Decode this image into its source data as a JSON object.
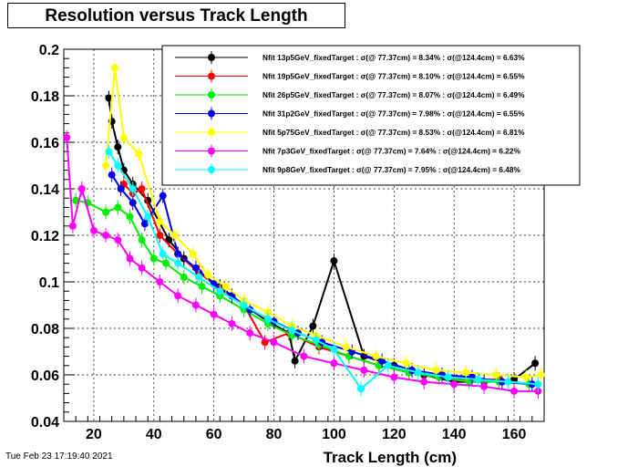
{
  "chart_data": {
    "type": "scatter",
    "title": "Resolution versus Track Length",
    "xlabel": "Track Length (cm)",
    "ylabel": "",
    "xlim": [
      10,
      170
    ],
    "ylim": [
      0.04,
      0.2
    ],
    "x_ticks": [
      20,
      40,
      60,
      80,
      100,
      120,
      140,
      160
    ],
    "x_tick_labels": [
      "20",
      "40",
      "60",
      "80",
      "100",
      "120",
      "140",
      "160"
    ],
    "y_ticks": [
      0.04,
      0.06,
      0.08,
      0.1,
      0.12,
      0.14,
      0.16,
      0.18,
      0.2
    ],
    "y_tick_labels": [
      "0.04",
      "0.06",
      "0.08",
      "0.1",
      "0.12",
      "0.14",
      "0.16",
      "0.18",
      "0.2"
    ],
    "grid": true,
    "legend_position": "top-right",
    "series": [
      {
        "name": "Nfit 13p5GeV_fixedTarget : σ(@ 77.37cm) = 8.34% : σ(@124.4cm) = 6.63%",
        "color": "#000000",
        "points": [
          [
            25,
            0.179
          ],
          [
            26,
            0.169
          ],
          [
            28,
            0.158
          ],
          [
            30,
            0.148
          ],
          [
            33,
            0.142
          ],
          [
            38,
            0.135
          ],
          [
            45,
            0.118
          ],
          [
            50,
            0.11
          ],
          [
            55,
            0.104
          ],
          [
            62,
            0.098
          ],
          [
            70,
            0.09
          ],
          [
            78,
            0.083
          ],
          [
            85,
            0.078
          ],
          [
            87,
            0.066
          ],
          [
            93,
            0.081
          ],
          [
            100,
            0.109
          ],
          [
            110,
            0.068
          ],
          [
            120,
            0.064
          ],
          [
            130,
            0.06
          ],
          [
            140,
            0.057
          ],
          [
            150,
            0.057
          ],
          [
            160,
            0.058
          ],
          [
            167,
            0.065
          ]
        ]
      },
      {
        "name": "Nfit 19p5GeV_fixedTarget : σ(@ 77.37cm) = 8.10% : σ(@124.4cm) = 6.55%",
        "color": "#ff0000",
        "points": [
          [
            30,
            0.142
          ],
          [
            33,
            0.138
          ],
          [
            36,
            0.14
          ],
          [
            42,
            0.12
          ],
          [
            48,
            0.112
          ],
          [
            55,
            0.104
          ],
          [
            62,
            0.097
          ],
          [
            70,
            0.09
          ],
          [
            77,
            0.074
          ],
          [
            85,
            0.078
          ],
          [
            95,
            0.072
          ],
          [
            105,
            0.068
          ],
          [
            115,
            0.064
          ],
          [
            125,
            0.061
          ],
          [
            135,
            0.059
          ],
          [
            145,
            0.058
          ],
          [
            155,
            0.058
          ],
          [
            165,
            0.056
          ]
        ]
      },
      {
        "name": "Nfit 26p5GeV_fixedTarget : σ(@ 77.37cm) = 8.07% : σ(@124.4cm) = 6.49%",
        "color": "#00ee00",
        "points": [
          [
            14,
            0.135
          ],
          [
            18,
            0.134
          ],
          [
            24,
            0.13
          ],
          [
            28,
            0.132
          ],
          [
            32,
            0.128
          ],
          [
            36,
            0.118
          ],
          [
            40,
            0.11
          ],
          [
            44,
            0.108
          ],
          [
            50,
            0.102
          ],
          [
            56,
            0.098
          ],
          [
            62,
            0.094
          ],
          [
            70,
            0.088
          ],
          [
            78,
            0.082
          ],
          [
            86,
            0.077
          ],
          [
            95,
            0.073
          ],
          [
            105,
            0.068
          ],
          [
            115,
            0.064
          ],
          [
            125,
            0.061
          ],
          [
            135,
            0.059
          ],
          [
            145,
            0.057
          ],
          [
            155,
            0.057
          ],
          [
            165,
            0.056
          ]
        ]
      },
      {
        "name": "Nfit 31p2GeV_fixedTarget : σ(@ 77.37cm) = 7.98% : σ(@124.4cm) = 6.55%",
        "color": "#0000ee",
        "points": [
          [
            26,
            0.146
          ],
          [
            29,
            0.14
          ],
          [
            33,
            0.134
          ],
          [
            37,
            0.125
          ],
          [
            43,
            0.137
          ],
          [
            48,
            0.112
          ],
          [
            54,
            0.106
          ],
          [
            60,
            0.099
          ],
          [
            66,
            0.094
          ],
          [
            72,
            0.088
          ],
          [
            80,
            0.083
          ],
          [
            88,
            0.078
          ],
          [
            96,
            0.074
          ],
          [
            106,
            0.07
          ],
          [
            116,
            0.066
          ],
          [
            126,
            0.062
          ],
          [
            136,
            0.06
          ],
          [
            146,
            0.059
          ],
          [
            156,
            0.057
          ],
          [
            166,
            0.056
          ]
        ]
      },
      {
        "name": "Nfit 5p75GeV_fixedTarget : σ(@ 77.37cm) = 8.53% : σ(@124.4cm) = 6.81%",
        "color": "#ffff00",
        "points": [
          [
            24,
            0.15
          ],
          [
            27,
            0.192
          ],
          [
            30,
            0.162
          ],
          [
            35,
            0.155
          ],
          [
            42,
            0.126
          ],
          [
            47,
            0.12
          ],
          [
            53,
            0.112
          ],
          [
            58,
            0.103
          ],
          [
            64,
            0.098
          ],
          [
            70,
            0.092
          ],
          [
            78,
            0.087
          ],
          [
            86,
            0.081
          ],
          [
            94,
            0.077
          ],
          [
            104,
            0.072
          ],
          [
            114,
            0.068
          ],
          [
            124,
            0.065
          ],
          [
            134,
            0.062
          ],
          [
            144,
            0.061
          ],
          [
            154,
            0.06
          ],
          [
            164,
            0.059
          ],
          [
            169,
            0.06
          ]
        ]
      },
      {
        "name": "Nfit 7p3GeV_fixedTarget : σ(@ 77.37cm) = 7.64% : σ(@124.4cm) = 6.22%",
        "color": "#ff00ff",
        "points": [
          [
            11,
            0.162
          ],
          [
            13,
            0.124
          ],
          [
            16,
            0.14
          ],
          [
            20,
            0.122
          ],
          [
            24,
            0.12
          ],
          [
            28,
            0.118
          ],
          [
            32,
            0.11
          ],
          [
            36,
            0.106
          ],
          [
            42,
            0.1
          ],
          [
            48,
            0.094
          ],
          [
            54,
            0.09
          ],
          [
            60,
            0.086
          ],
          [
            66,
            0.082
          ],
          [
            72,
            0.078
          ],
          [
            80,
            0.074
          ],
          [
            90,
            0.068
          ],
          [
            100,
            0.065
          ],
          [
            110,
            0.062
          ],
          [
            120,
            0.059
          ],
          [
            130,
            0.057
          ],
          [
            140,
            0.056
          ],
          [
            150,
            0.055
          ],
          [
            160,
            0.053
          ],
          [
            168,
            0.053
          ]
        ]
      },
      {
        "name": "Nfit 9p8GeV_fixedTarget : σ(@ 77.37cm) = 7.95% : σ(@124.4cm) = 6.48%",
        "color": "#00ffff",
        "points": [
          [
            25,
            0.156
          ],
          [
            28,
            0.15
          ],
          [
            33,
            0.14
          ],
          [
            38,
            0.128
          ],
          [
            43,
            0.112
          ],
          [
            48,
            0.108
          ],
          [
            55,
            0.102
          ],
          [
            62,
            0.096
          ],
          [
            70,
            0.09
          ],
          [
            78,
            0.084
          ],
          [
            86,
            0.079
          ],
          [
            94,
            0.075
          ],
          [
            100,
            0.071
          ],
          [
            109,
            0.054
          ],
          [
            118,
            0.064
          ],
          [
            128,
            0.061
          ],
          [
            138,
            0.059
          ],
          [
            148,
            0.058
          ],
          [
            158,
            0.057
          ],
          [
            168,
            0.056
          ]
        ]
      }
    ]
  },
  "footer": {
    "timestamp": "Tue Feb 23 17:19:40 2021"
  }
}
